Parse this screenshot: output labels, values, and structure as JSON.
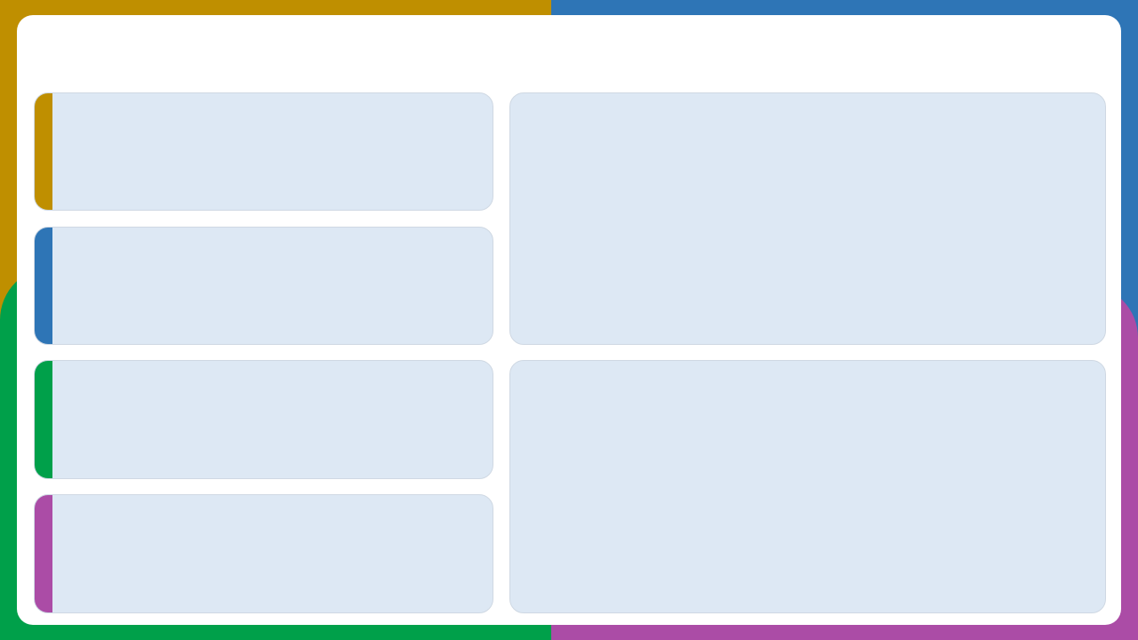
{
  "colors": {
    "gold": "#bf8f00",
    "blue": "#2e75b6",
    "green": "#00a04a",
    "purple": "#ab4ca6",
    "card_fill": "#dde8f4",
    "panel": "#ffffff"
  },
  "header": {
    "title": ""
  },
  "left_cards": [
    {
      "accent": "gold",
      "text": ""
    },
    {
      "accent": "blue",
      "text": ""
    },
    {
      "accent": "green",
      "text": ""
    },
    {
      "accent": "purple",
      "text": ""
    }
  ],
  "right_panels": [
    {
      "text": ""
    },
    {
      "text": ""
    }
  ]
}
